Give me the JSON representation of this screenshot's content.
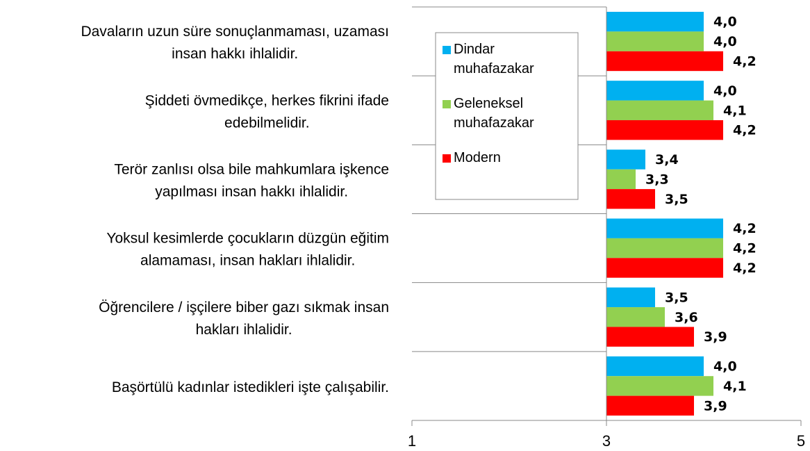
{
  "chart_data": {
    "type": "bar",
    "orientation": "horizontal",
    "categories": [
      [
        "Davaların uzun süre sonuçlanmaması, uzaması",
        "insan hakkı ihlalidir."
      ],
      [
        "Şiddeti övmedikçe, herkes fikrini ifade",
        "edebilmelidir."
      ],
      [
        "Terör zanlısı olsa bile mahkumlara işkence",
        "yapılması insan hakkı ihlalidir."
      ],
      [
        "Yoksul kesimlerde çocukların düzgün eğitim",
        "alamaması, insan hakları ihlalidir."
      ],
      [
        "Öğrencilere / işçilere biber gazı sıkmak insan",
        "hakları ihlalidir."
      ],
      [
        "Başörtülü kadınlar istedikleri işte çalışabilir."
      ]
    ],
    "series": [
      {
        "name": "Dindar muhafazakar",
        "color": "#00b0f0",
        "values": [
          4.0,
          4.0,
          3.4,
          4.2,
          3.5,
          4.0
        ],
        "value_labels": [
          "4,0",
          "4,0",
          "3,4",
          "4,2",
          "3,5",
          "4,0"
        ]
      },
      {
        "name": "Geleneksel muhafazakar",
        "color": "#92d050",
        "values": [
          4.0,
          4.1,
          3.3,
          4.2,
          3.6,
          4.1
        ],
        "value_labels": [
          "4,0",
          "4,1",
          "3,3",
          "4,2",
          "3,6",
          "4,1"
        ]
      },
      {
        "name": "Modern",
        "color": "#ff0000",
        "values": [
          4.2,
          4.2,
          3.5,
          4.2,
          3.9,
          3.9
        ],
        "value_labels": [
          "4,2",
          "4,2",
          "3,5",
          "4,2",
          "3,9",
          "3,9"
        ]
      }
    ],
    "xlim": [
      1,
      5
    ],
    "xticks": [
      1,
      3,
      5
    ],
    "x_axis_crosses": 3,
    "legend": "top-left"
  }
}
